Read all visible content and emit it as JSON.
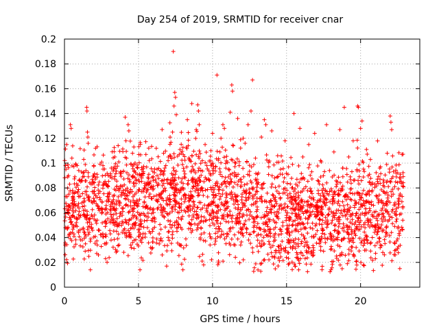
{
  "chart_data": {
    "type": "scatter",
    "title": "Day 254 of 2019, SRMTID for receiver cnar",
    "xlabel": "GPS time / hours",
    "ylabel": "SRMTID / TECUs",
    "xlim": [
      0,
      24
    ],
    "ylim": [
      0,
      0.2
    ],
    "xticks": [
      0,
      5,
      10,
      15,
      20
    ],
    "xtick_labels": [
      "0",
      "5",
      "10",
      "15",
      "20"
    ],
    "yticks": [
      0,
      0.02,
      0.04,
      0.06,
      0.08,
      0.1,
      0.12,
      0.14,
      0.16,
      0.18,
      0.2
    ],
    "ytick_labels": [
      "0",
      "0.02",
      "0.04",
      "0.06",
      "0.08",
      "0.1",
      "0.12",
      "0.14",
      "0.16",
      "0.18",
      "0.2"
    ],
    "grid": true,
    "marker": "plus",
    "color": "#ff0000",
    "series": [
      {
        "name": "SRMTID",
        "points": [
          [
            0.05,
            0.034
          ],
          [
            0.1,
            0.095
          ],
          [
            0.15,
            0.115
          ],
          [
            0.2,
            0.047
          ],
          [
            0.25,
            0.062
          ],
          [
            0.3,
            0.075
          ],
          [
            0.35,
            0.083
          ],
          [
            0.4,
            0.131
          ],
          [
            0.45,
            0.128
          ],
          [
            0.5,
            0.104
          ],
          [
            0.55,
            0.058
          ],
          [
            0.6,
            0.071
          ],
          [
            0.65,
            0.041
          ],
          [
            0.7,
            0.089
          ],
          [
            0.75,
            0.066
          ],
          [
            0.8,
            0.052
          ],
          [
            0.85,
            0.098
          ],
          [
            0.9,
            0.076
          ],
          [
            0.95,
            0.044
          ],
          [
            1.0,
            0.061
          ],
          [
            1.1,
            0.085
          ],
          [
            1.2,
            0.038
          ],
          [
            1.3,
            0.103
          ],
          [
            1.35,
            0.057
          ],
          [
            1.4,
            0.029
          ],
          [
            1.45,
            0.094
          ],
          [
            1.5,
            0.145
          ],
          [
            1.52,
            0.142
          ],
          [
            1.55,
            0.125
          ],
          [
            1.58,
            0.121
          ],
          [
            1.6,
            0.116
          ],
          [
            1.65,
            0.072
          ],
          [
            1.7,
            0.049
          ],
          [
            1.75,
            0.014
          ],
          [
            1.8,
            0.083
          ],
          [
            1.9,
            0.068
          ],
          [
            2.0,
            0.055
          ],
          [
            2.1,
            0.112
          ],
          [
            2.2,
            0.091
          ],
          [
            2.3,
            0.046
          ],
          [
            2.4,
            0.077
          ],
          [
            2.5,
            0.063
          ],
          [
            2.6,
            0.098
          ],
          [
            2.7,
            0.035
          ],
          [
            2.8,
            0.059
          ],
          [
            2.9,
            0.082
          ],
          [
            3.0,
            0.071
          ],
          [
            3.1,
            0.043
          ],
          [
            3.2,
            0.088
          ],
          [
            3.3,
            0.054
          ],
          [
            3.4,
            0.105
          ],
          [
            3.5,
            0.067
          ],
          [
            3.6,
            0.039
          ],
          [
            3.7,
            0.079
          ],
          [
            3.8,
            0.093
          ],
          [
            3.9,
            0.058
          ],
          [
            4.0,
            0.046
          ],
          [
            4.1,
            0.137
          ],
          [
            4.15,
            0.118
          ],
          [
            4.2,
            0.074
          ],
          [
            4.3,
            0.131
          ],
          [
            4.35,
            0.126
          ],
          [
            4.4,
            0.061
          ],
          [
            4.5,
            0.099
          ],
          [
            4.6,
            0.036
          ],
          [
            4.7,
            0.084
          ],
          [
            4.8,
            0.052
          ],
          [
            4.9,
            0.069
          ],
          [
            5.0,
            0.041
          ],
          [
            5.1,
            0.014
          ],
          [
            5.2,
            0.077
          ],
          [
            5.3,
            0.092
          ],
          [
            5.4,
            0.058
          ],
          [
            5.5,
            0.107
          ],
          [
            5.6,
            0.048
          ],
          [
            5.7,
            0.073
          ],
          [
            5.8,
            0.064
          ],
          [
            5.9,
            0.031
          ],
          [
            6.0,
            0.086
          ],
          [
            6.1,
            0.055
          ],
          [
            6.2,
            0.112
          ],
          [
            6.3,
            0.069
          ],
          [
            6.4,
            0.043
          ],
          [
            6.5,
            0.094
          ],
          [
            6.6,
            0.026
          ],
          [
            6.7,
            0.078
          ],
          [
            6.8,
            0.061
          ],
          [
            6.9,
            0.017
          ],
          [
            7.0,
            0.102
          ],
          [
            7.1,
            0.071
          ],
          [
            7.2,
            0.048
          ],
          [
            7.3,
            0.125
          ],
          [
            7.35,
            0.19
          ],
          [
            7.4,
            0.146
          ],
          [
            7.45,
            0.157
          ],
          [
            7.5,
            0.153
          ],
          [
            7.55,
            0.139
          ],
          [
            7.6,
            0.083
          ],
          [
            7.7,
            0.056
          ],
          [
            7.8,
            0.111
          ],
          [
            7.9,
            0.067
          ],
          [
            8.0,
            0.014
          ],
          [
            8.1,
            0.089
          ],
          [
            8.2,
            0.074
          ],
          [
            8.3,
            0.135
          ],
          [
            8.4,
            0.104
          ],
          [
            8.5,
            0.062
          ],
          [
            8.6,
            0.148
          ],
          [
            8.7,
            0.095
          ],
          [
            8.8,
            0.051
          ],
          [
            8.9,
            0.127
          ],
          [
            9.0,
            0.147
          ],
          [
            9.05,
            0.142
          ],
          [
            9.1,
            0.131
          ],
          [
            9.2,
            0.078
          ],
          [
            9.3,
            0.021
          ],
          [
            9.4,
            0.018
          ],
          [
            9.5,
            0.115
          ],
          [
            9.6,
            0.087
          ],
          [
            9.7,
            0.066
          ],
          [
            9.8,
            0.043
          ],
          [
            9.9,
            0.098
          ],
          [
            10.0,
            0.124
          ],
          [
            10.1,
            0.072
          ],
          [
            10.2,
            0.039
          ],
          [
            10.3,
            0.171
          ],
          [
            10.4,
            0.021
          ],
          [
            10.5,
            0.109
          ],
          [
            10.6,
            0.083
          ],
          [
            10.7,
            0.131
          ],
          [
            10.8,
            0.128
          ],
          [
            10.9,
            0.096
          ],
          [
            11.0,
            0.057
          ],
          [
            11.1,
            0.084
          ],
          [
            11.2,
            0.141
          ],
          [
            11.3,
            0.163
          ],
          [
            11.35,
            0.158
          ],
          [
            11.4,
            0.114
          ],
          [
            11.5,
            0.075
          ],
          [
            11.6,
            0.052
          ],
          [
            11.7,
            0.136
          ],
          [
            11.8,
            0.098
          ],
          [
            11.9,
            0.034
          ],
          [
            12.0,
            0.068
          ],
          [
            12.1,
            0.089
          ],
          [
            12.2,
            0.116
          ],
          [
            12.3,
            0.044
          ],
          [
            12.4,
            0.131
          ],
          [
            12.5,
            0.079
          ],
          [
            12.6,
            0.142
          ],
          [
            12.7,
            0.167
          ],
          [
            12.8,
            0.055
          ],
          [
            12.9,
            0.104
          ],
          [
            13.0,
            0.069
          ],
          [
            13.1,
            0.092
          ],
          [
            13.2,
            0.047
          ],
          [
            13.3,
            0.121
          ],
          [
            13.4,
            0.083
          ],
          [
            13.5,
            0.135
          ],
          [
            13.6,
            0.131
          ],
          [
            13.7,
            0.058
          ],
          [
            13.8,
            0.097
          ],
          [
            13.9,
            0.041
          ],
          [
            14.0,
            0.126
          ],
          [
            14.1,
            0.074
          ],
          [
            14.2,
            0.088
          ],
          [
            14.3,
            0.052
          ],
          [
            14.4,
            0.106
          ],
          [
            14.5,
            0.063
          ],
          [
            14.6,
            0.095
          ],
          [
            14.7,
            0.037
          ],
          [
            14.8,
            0.079
          ],
          [
            14.9,
            0.118
          ],
          [
            15.0,
            0.056
          ],
          [
            15.1,
            0.091
          ],
          [
            15.2,
            0.042
          ],
          [
            15.3,
            0.072
          ],
          [
            15.4,
            0.099
          ],
          [
            15.5,
            0.14
          ],
          [
            15.6,
            0.063
          ],
          [
            15.7,
            0.087
          ],
          [
            15.8,
            0.045
          ],
          [
            15.9,
            0.128
          ],
          [
            16.0,
            0.069
          ],
          [
            16.1,
            0.105
          ],
          [
            16.2,
            0.033
          ],
          [
            16.3,
            0.081
          ],
          [
            16.4,
            0.061
          ],
          [
            16.5,
            0.115
          ],
          [
            16.6,
            0.048
          ],
          [
            16.7,
            0.093
          ],
          [
            16.8,
            0.072
          ],
          [
            16.9,
            0.124
          ],
          [
            17.0,
            0.057
          ],
          [
            17.1,
            0.086
          ],
          [
            17.2,
            0.039
          ],
          [
            17.3,
            0.102
          ],
          [
            17.4,
            0.065
          ],
          [
            17.5,
            0.029
          ],
          [
            17.6,
            0.078
          ],
          [
            17.7,
            0.131
          ],
          [
            17.8,
            0.051
          ],
          [
            17.9,
            0.094
          ],
          [
            18.0,
            0.014
          ],
          [
            18.1,
            0.071
          ],
          [
            18.2,
            0.109
          ],
          [
            18.3,
            0.046
          ],
          [
            18.4,
            0.083
          ],
          [
            18.5,
            0.062
          ],
          [
            18.6,
            0.127
          ],
          [
            18.7,
            0.038
          ],
          [
            18.8,
            0.096
          ],
          [
            18.9,
            0.145
          ],
          [
            19.0,
            0.074
          ],
          [
            19.1,
            0.055
          ],
          [
            19.2,
            0.105
          ],
          [
            19.3,
            0.089
          ],
          [
            19.4,
            0.043
          ],
          [
            19.5,
            0.118
          ],
          [
            19.6,
            0.066
          ],
          [
            19.7,
            0.032
          ],
          [
            19.8,
            0.146
          ],
          [
            19.85,
            0.145
          ],
          [
            19.9,
            0.099
          ],
          [
            20.0,
            0.128
          ],
          [
            20.1,
            0.134
          ],
          [
            20.2,
            0.078
          ],
          [
            20.3,
            0.052
          ],
          [
            20.4,
            0.111
          ],
          [
            20.5,
            0.069
          ],
          [
            20.6,
            0.091
          ],
          [
            20.7,
            0.036
          ],
          [
            20.8,
            0.084
          ],
          [
            20.9,
            0.057
          ],
          [
            21.0,
            0.023
          ],
          [
            21.1,
            0.073
          ],
          [
            21.2,
            0.047
          ],
          [
            21.3,
            0.096
          ],
          [
            21.4,
            0.062
          ],
          [
            21.5,
            0.028
          ],
          [
            21.6,
            0.081
          ],
          [
            21.7,
            0.044
          ],
          [
            21.8,
            0.108
          ],
          [
            21.9,
            0.059
          ],
          [
            22.0,
            0.138
          ],
          [
            22.05,
            0.133
          ],
          [
            22.1,
            0.127
          ],
          [
            22.2,
            0.075
          ],
          [
            22.3,
            0.049
          ],
          [
            22.4,
            0.092
          ],
          [
            22.5,
            0.031
          ],
          [
            22.6,
            0.067
          ],
          [
            22.65,
            0.015
          ],
          [
            22.7,
            0.088
          ],
          [
            22.8,
            0.107
          ],
          [
            22.85,
            0.054
          ],
          [
            22.9,
            0.081
          ]
        ]
      }
    ]
  }
}
